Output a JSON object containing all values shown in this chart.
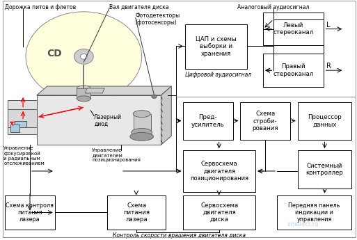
{
  "bg_color": "#ffffff",
  "box_fill": "#ffffff",
  "box_edge": "#000000",
  "cd_fill": "#ffffdd",
  "labels": {
    "dorozhka": "Дорожка питов и флетов",
    "val": "Вал двигателя диска",
    "analogovy": "Аналоговый аудиосигнал",
    "fotodetektor": "Фотодетекторы\n(фотосенсоры)",
    "cd": "CD",
    "lazerny": "Лазерный\nдиод",
    "upravlenie_fok": "Управление\nфокусировкой\nи радиальным\nотслеживанием",
    "upravlenie_dvig": "Управление\nдвигателем\nпозиционирования",
    "skhema_kontrolya": "Схема контроля\nпитания\nлазера",
    "skhema_pitaniya": "Схема\nпитания\nлазера",
    "tsap": "ЦАП и схемы\nвыборки и\nхранения",
    "tsifrovoy": "Цифровой аудиосигнал",
    "levy": "Левый\nстереоканал",
    "pravy": "Правый\nстереоканал",
    "L": "L",
    "R": "R",
    "pred_usil": "Пред-\nусилитель",
    "skhema_strobi": "Схема\nстроби-\nрования",
    "processor": "Процессор\nданных",
    "servoskhema_poz": "Сервосхема\nдвигателя\nпозиционирования",
    "sistemny": "Системный\nконтроллер",
    "servoskhema_diska": "Сервосхема\nдвигателя\nдиска",
    "perednyaya": "Передняя панель\nиндикации и\nуправления",
    "kontrol": "Контроль скорости вращения двигателя диска"
  }
}
